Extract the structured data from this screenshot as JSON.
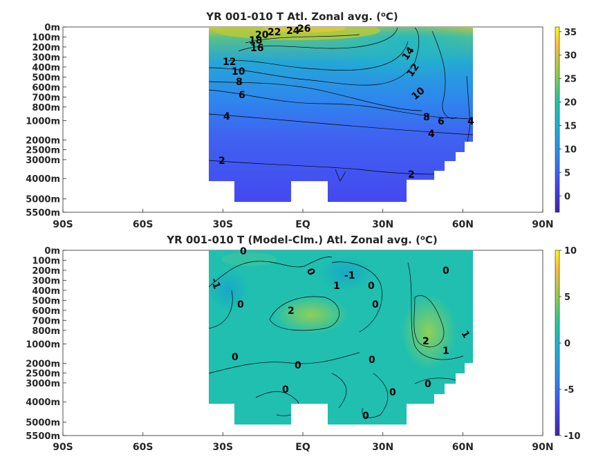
{
  "chart_data": [
    {
      "type": "heatmap",
      "title": "YR 001-010 T Atl. Zonal avg. (",
      "title_sup": "o",
      "title_end": "C)",
      "y_tick_labels": [
        "0m",
        "100m",
        "200m",
        "300m",
        "400m",
        "500m",
        "600m",
        "700m",
        "800m",
        "1000m",
        "2000m",
        "2500m",
        "3000m",
        "4000m",
        "5000m",
        "5500m"
      ],
      "x_tick_labels": [
        "90S",
        "60S",
        "30S",
        "EQ",
        "30N",
        "60N",
        "90N"
      ],
      "xlim": [
        -90,
        90
      ],
      "colorbar": {
        "ticks": [
          "35",
          "30",
          "25",
          "20",
          "15",
          "10",
          "5",
          "0"
        ],
        "range": [
          -3.5,
          36
        ]
      },
      "contour_labels": [
        "2",
        "4",
        "6",
        "8",
        "10",
        "12",
        "16",
        "18",
        "20",
        "22",
        "24",
        "26",
        "14",
        "12",
        "10",
        "8",
        "6",
        "4",
        "4",
        "2"
      ]
    },
    {
      "type": "heatmap",
      "title": "YR 001-010 T (Model-Clm.) Atl. Zonal avg. (",
      "title_sup": "o",
      "title_end": "C)",
      "y_tick_labels": [
        "0m",
        "100m",
        "200m",
        "300m",
        "400m",
        "500m",
        "600m",
        "700m",
        "800m",
        "1000m",
        "2000m",
        "2500m",
        "3000m",
        "4000m",
        "5000m",
        "5500m"
      ],
      "x_tick_labels": [
        "90S",
        "60S",
        "30S",
        "EQ",
        "30N",
        "60N",
        "90N"
      ],
      "xlim": [
        -90,
        90
      ],
      "colorbar": {
        "ticks": [
          "10",
          "5",
          "0",
          "-5",
          "-10"
        ],
        "range": [
          -10,
          10
        ]
      },
      "contour_labels": [
        "0",
        "-1",
        "0",
        "0",
        "0",
        "0",
        "1",
        "-1",
        "0",
        "0",
        "2",
        "0",
        "0",
        "0",
        "0",
        "2",
        "1",
        "1",
        "0",
        "0"
      ]
    }
  ],
  "colors": {
    "cmap": [
      "#3e26a8",
      "#4743f8",
      "#2d8cf4",
      "#1fabda",
      "#1fc6a1",
      "#91cd4a",
      "#f9bc3f",
      "#f9f914"
    ],
    "ocean_top": "#2fb3c8",
    "ocean_mid": "#4169e8",
    "ocean_bottom": "#4548f0",
    "anomaly_base": "#1fc0b2"
  }
}
